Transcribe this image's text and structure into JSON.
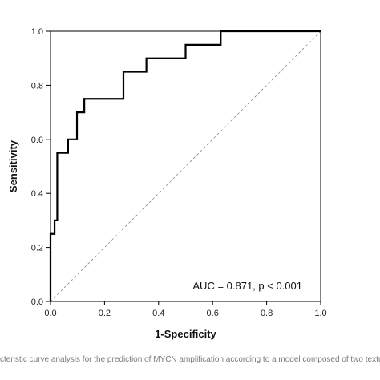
{
  "chart_data": {
    "type": "line",
    "title": "",
    "xlabel": "1-Specificity",
    "ylabel": "Sensitivity",
    "xlim": [
      0,
      1
    ],
    "ylim": [
      0,
      1
    ],
    "x_ticks": [
      0.0,
      0.2,
      0.4,
      0.6,
      0.8,
      1.0
    ],
    "y_ticks": [
      0.0,
      0.2,
      0.4,
      0.6,
      0.8,
      1.0
    ],
    "x_tick_labels": [
      "0.0",
      "0.2",
      "0.4",
      "0.6",
      "0.8",
      "1.0"
    ],
    "y_tick_labels": [
      "0.0",
      "0.2",
      "0.4",
      "0.6",
      "0.8",
      "1.0"
    ],
    "grid": false,
    "series": [
      {
        "color": "#000000",
        "x": [
          0,
          0,
          0.015,
          0.015,
          0.025,
          0.025,
          0.065,
          0.065,
          0.098,
          0.098,
          0.125,
          0.125,
          0.27,
          0.27,
          0.355,
          0.355,
          0.5,
          0.5,
          0.63,
          0.63,
          1.0
        ],
        "y": [
          0,
          0.25,
          0.25,
          0.3,
          0.3,
          0.55,
          0.55,
          0.6,
          0.6,
          0.7,
          0.7,
          0.75,
          0.75,
          0.85,
          0.85,
          0.9,
          0.9,
          0.95,
          0.95,
          1.0,
          1.0
        ]
      }
    ],
    "reference_line": {
      "x": [
        0,
        1
      ],
      "y": [
        0,
        1
      ],
      "color": "#888888",
      "style": "dashed"
    },
    "annotation": "AUC = 0.871, p < 0.001"
  },
  "caption": "cteristic curve analysis for the prediction of MYCN amplification according to a model composed of two textu"
}
